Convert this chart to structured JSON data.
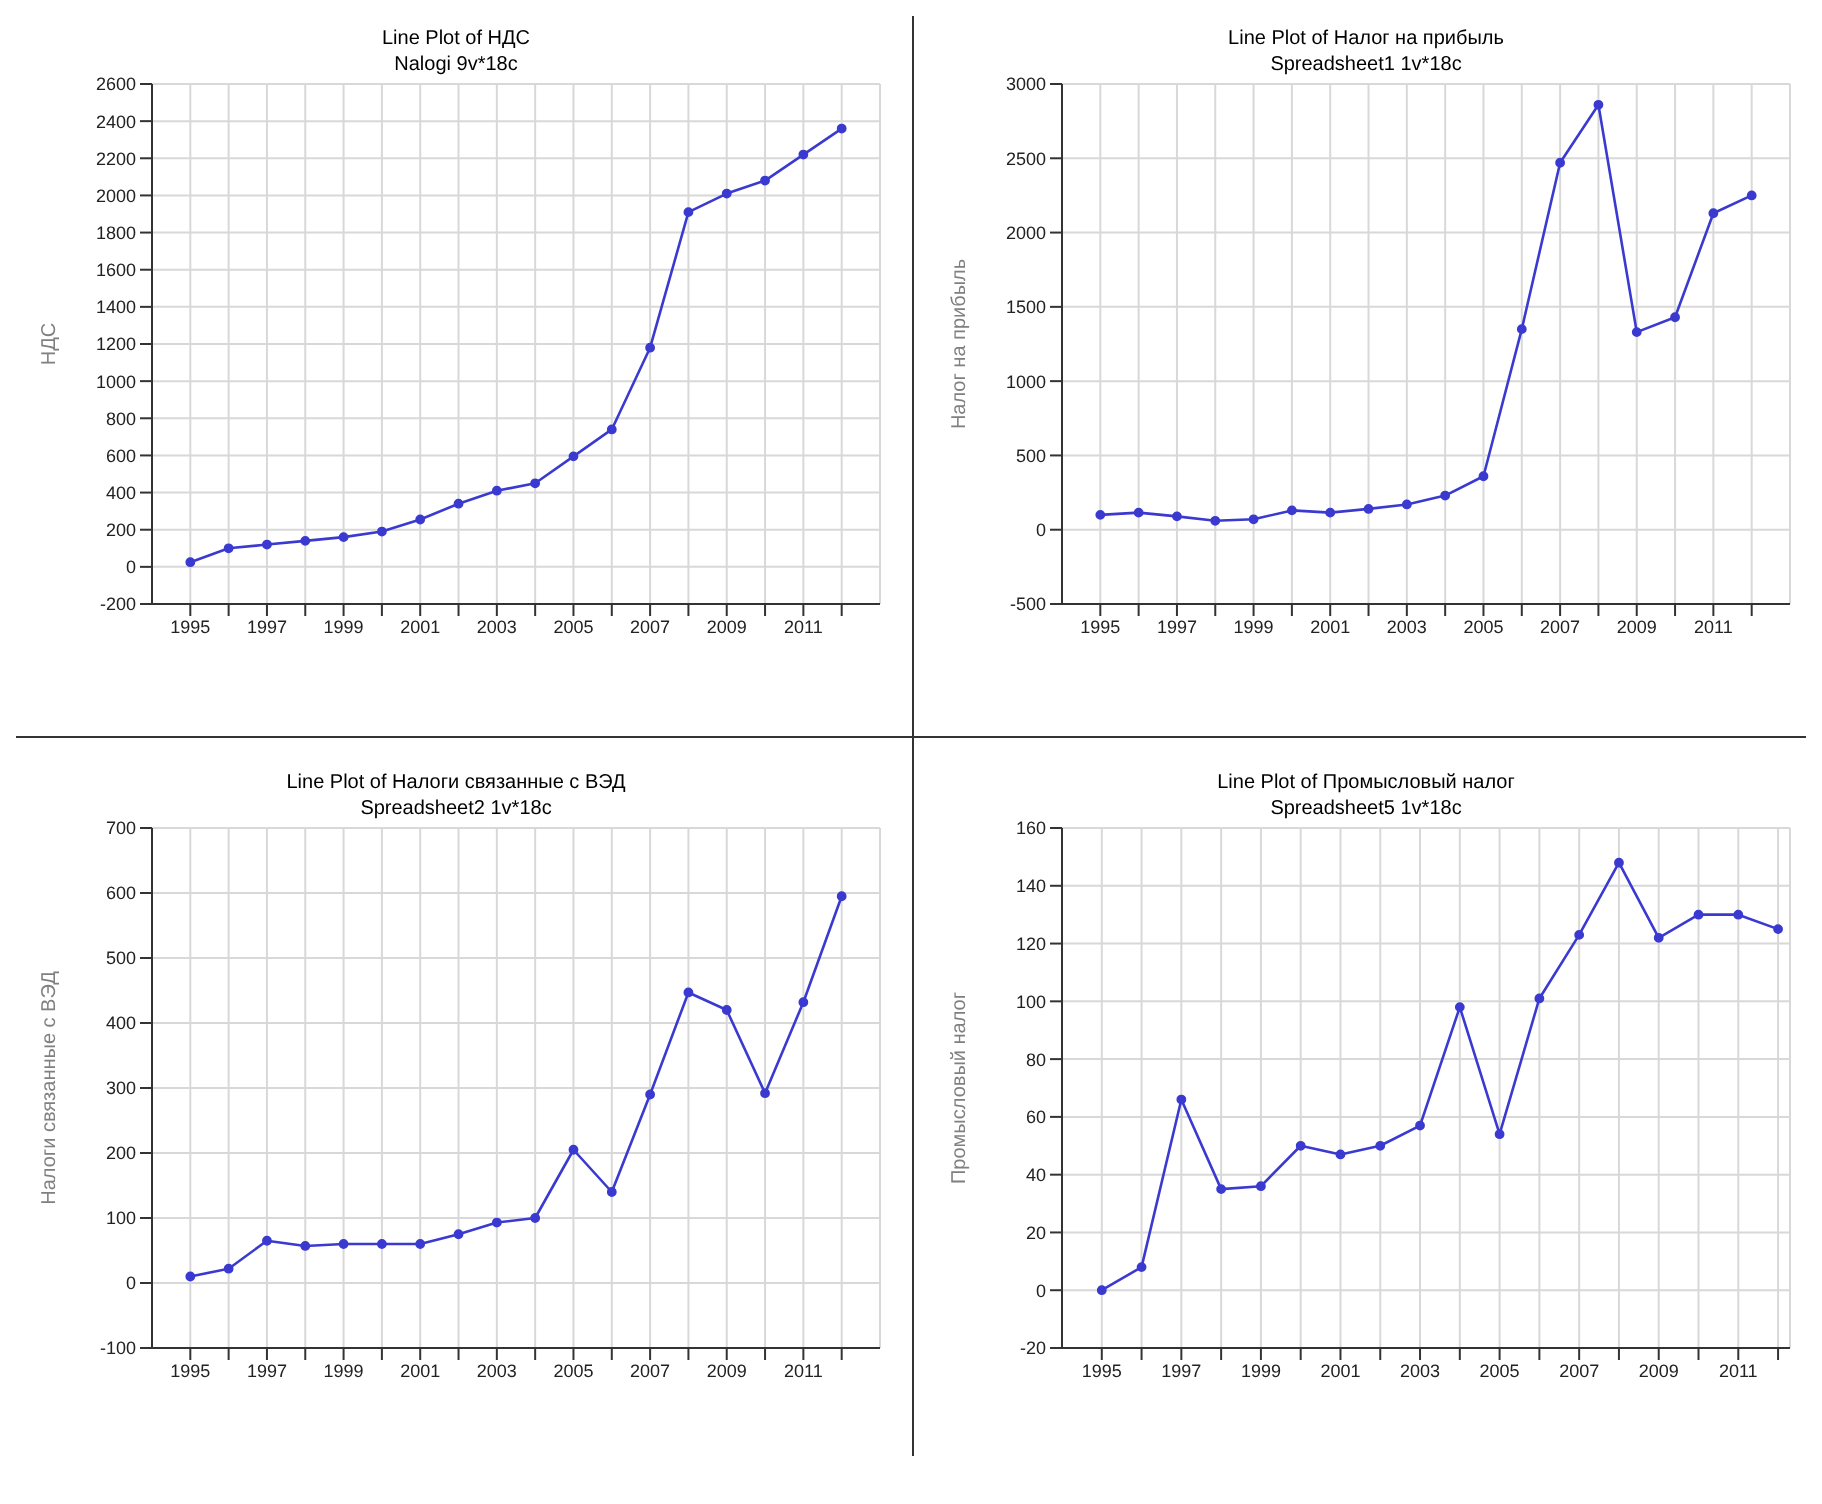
{
  "chart_data": [
    {
      "type": "line",
      "title": "Line Plot of НДС",
      "subtitle": "Nalogi 9v*18c",
      "ylabel": "НДС",
      "x": [
        1995,
        1996,
        1997,
        1998,
        1999,
        2000,
        2001,
        2002,
        2003,
        2004,
        2005,
        2006,
        2007,
        2008,
        2009,
        2010,
        2011,
        2012
      ],
      "series": [
        {
          "color": "#3a3ad0",
          "values": [
            25,
            100,
            120,
            140,
            160,
            190,
            255,
            340,
            410,
            450,
            595,
            740,
            1180,
            1910,
            2010,
            2080,
            2220,
            2360
          ]
        }
      ],
      "xlim": [
        1994,
        2013
      ],
      "xticks": [
        1995,
        {
          "value": 1996,
          "label": null
        },
        1997,
        {
          "value": 1998,
          "label": null
        },
        1999,
        {
          "value": 2000,
          "label": null
        },
        2001,
        {
          "value": 2002,
          "label": null
        },
        2003,
        {
          "value": 2004,
          "label": null
        },
        2005,
        {
          "value": 2006,
          "label": null
        },
        2007,
        {
          "value": 2008,
          "label": null
        },
        2009,
        {
          "value": 2010,
          "label": null
        },
        2011,
        {
          "value": 2012,
          "label": null
        }
      ],
      "ylim": [
        -200,
        2600
      ],
      "yticks": [
        -200,
        0,
        200,
        400,
        600,
        800,
        1000,
        1200,
        1400,
        1600,
        1800,
        2000,
        2200,
        2400,
        2600
      ],
      "grid": true,
      "marker": "circle",
      "line_style": "solid"
    },
    {
      "type": "line",
      "title": "Line Plot of Налог на прибыль",
      "subtitle": "Spreadsheet1 1v*18c",
      "ylabel": "Налог на прибыль",
      "x": [
        1995,
        1996,
        1997,
        1998,
        1999,
        2000,
        2001,
        2002,
        2003,
        2004,
        2005,
        2006,
        2007,
        2008,
        2009,
        2010,
        2011,
        2012
      ],
      "series": [
        {
          "color": "#3a3ad0",
          "values": [
            100,
            115,
            90,
            60,
            70,
            130,
            115,
            140,
            170,
            230,
            360,
            1350,
            2470,
            2860,
            1330,
            1430,
            2130,
            2250
          ]
        }
      ],
      "xlim": [
        1994,
        2013
      ],
      "xticks": [
        1995,
        {
          "value": 1996,
          "label": null
        },
        1997,
        {
          "value": 1998,
          "label": null
        },
        1999,
        {
          "value": 2000,
          "label": null
        },
        2001,
        {
          "value": 2002,
          "label": null
        },
        2003,
        {
          "value": 2004,
          "label": null
        },
        2005,
        {
          "value": 2006,
          "label": null
        },
        2007,
        {
          "value": 2008,
          "label": null
        },
        2009,
        {
          "value": 2010,
          "label": null
        },
        2011,
        {
          "value": 2012,
          "label": null
        }
      ],
      "ylim": [
        -500,
        3000
      ],
      "yticks": [
        -500,
        0,
        500,
        1000,
        1500,
        2000,
        2500,
        3000
      ],
      "grid": true,
      "marker": "circle",
      "line_style": "solid"
    },
    {
      "type": "line",
      "title": "Line Plot of Налоги связанные с ВЭД",
      "subtitle": "Spreadsheet2 1v*18c",
      "ylabel": "Налоги связанные с ВЭД",
      "x": [
        1995,
        1996,
        1997,
        1998,
        1999,
        2000,
        2001,
        2002,
        2003,
        2004,
        2005,
        2006,
        2007,
        2008,
        2009,
        2010,
        2011,
        2012
      ],
      "series": [
        {
          "color": "#3a3ad0",
          "values": [
            10,
            22,
            65,
            57,
            60,
            60,
            60,
            75,
            93,
            100,
            205,
            140,
            290,
            447,
            420,
            292,
            432,
            595
          ]
        }
      ],
      "xlim": [
        1994,
        2013
      ],
      "xticks": [
        1995,
        {
          "value": 1996,
          "label": null
        },
        1997,
        {
          "value": 1998,
          "label": null
        },
        1999,
        {
          "value": 2000,
          "label": null
        },
        2001,
        {
          "value": 2002,
          "label": null
        },
        2003,
        {
          "value": 2004,
          "label": null
        },
        2005,
        {
          "value": 2006,
          "label": null
        },
        2007,
        {
          "value": 2008,
          "label": null
        },
        2009,
        {
          "value": 2010,
          "label": null
        },
        2011,
        {
          "value": 2012,
          "label": null
        }
      ],
      "ylim": [
        -100,
        700
      ],
      "yticks": [
        -100,
        0,
        100,
        200,
        300,
        400,
        500,
        600,
        700
      ],
      "grid": true,
      "marker": "circle",
      "line_style": "solid"
    },
    {
      "type": "line",
      "title": "Line Plot of Промысловый налог",
      "subtitle": "Spreadsheet5 1v*18c",
      "ylabel": "Промысловый налог",
      "x": [
        1995,
        1996,
        1997,
        1998,
        1999,
        2000,
        2001,
        2002,
        2003,
        2004,
        2005,
        2006,
        2007,
        2008,
        2009,
        2010,
        2011,
        2012
      ],
      "series": [
        {
          "color": "#3a3ad0",
          "values": [
            0,
            8,
            66,
            35,
            36,
            50,
            47,
            50,
            57,
            98,
            54,
            101,
            123,
            148,
            122,
            130,
            130,
            125
          ]
        }
      ],
      "xlim": [
        1994,
        2012.3
      ],
      "xticks": [
        1995,
        {
          "value": 1996,
          "label": null
        },
        1997,
        {
          "value": 1998,
          "label": null
        },
        1999,
        {
          "value": 2000,
          "label": null
        },
        2001,
        {
          "value": 2002,
          "label": null
        },
        2003,
        {
          "value": 2004,
          "label": null
        },
        2005,
        {
          "value": 2006,
          "label": null
        },
        2007,
        {
          "value": 2008,
          "label": null
        },
        2009,
        {
          "value": 2010,
          "label": null
        },
        2011,
        {
          "value": 2012,
          "label": null
        }
      ],
      "ylim": [
        -20,
        160
      ],
      "yticks": [
        -20,
        0,
        20,
        40,
        60,
        80,
        100,
        120,
        140,
        160
      ],
      "grid": true,
      "marker": "circle",
      "line_style": "solid"
    }
  ]
}
